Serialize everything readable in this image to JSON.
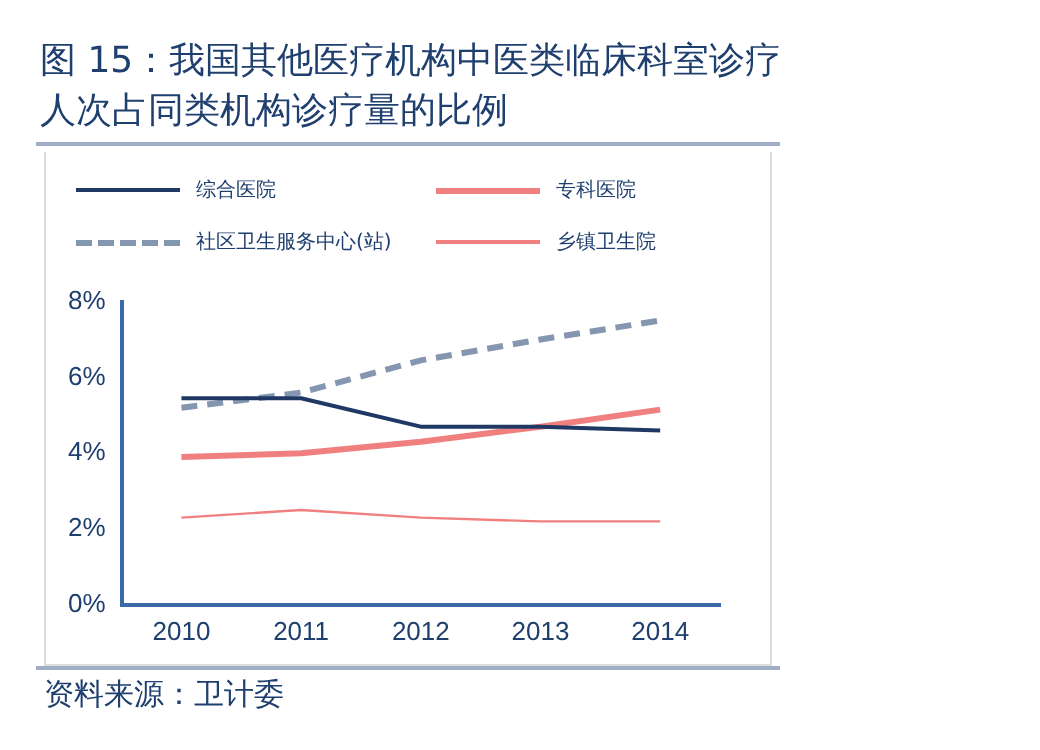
{
  "chart_data": {
    "type": "line",
    "title": "图 15：我国其他医疗机构中医类临床科室诊疗人次占同类机构诊疗量的比例",
    "categories": [
      "2010",
      "2011",
      "2012",
      "2013",
      "2014"
    ],
    "series": [
      {
        "name": "综合医院",
        "color": "#1f3864",
        "values": [
          5.45,
          5.45,
          4.7,
          4.7,
          4.6
        ]
      },
      {
        "name": "专科医院",
        "color": "#f08080",
        "values": [
          3.9,
          4.0,
          4.3,
          4.7,
          5.15
        ]
      },
      {
        "name": "社区卫生服务中心(站)",
        "color": "#8496b0",
        "values": [
          5.2,
          5.6,
          6.45,
          7.0,
          7.5
        ],
        "line_style": "dashed"
      },
      {
        "name": "乡镇卫生院",
        "color": "#f08080",
        "values": [
          2.3,
          2.5,
          2.3,
          2.2,
          2.2
        ]
      }
    ],
    "ylim": [
      0,
      8
    ],
    "yticks": [
      {
        "value": 0,
        "label": "0%"
      },
      {
        "value": 2,
        "label": "2%"
      },
      {
        "value": 4,
        "label": "4%"
      },
      {
        "value": 6,
        "label": "6%"
      },
      {
        "value": 8,
        "label": "8%"
      }
    ],
    "grid": false,
    "legend": "top",
    "marker": "none",
    "annotations": [
      "资料来源：卫计委"
    ]
  }
}
